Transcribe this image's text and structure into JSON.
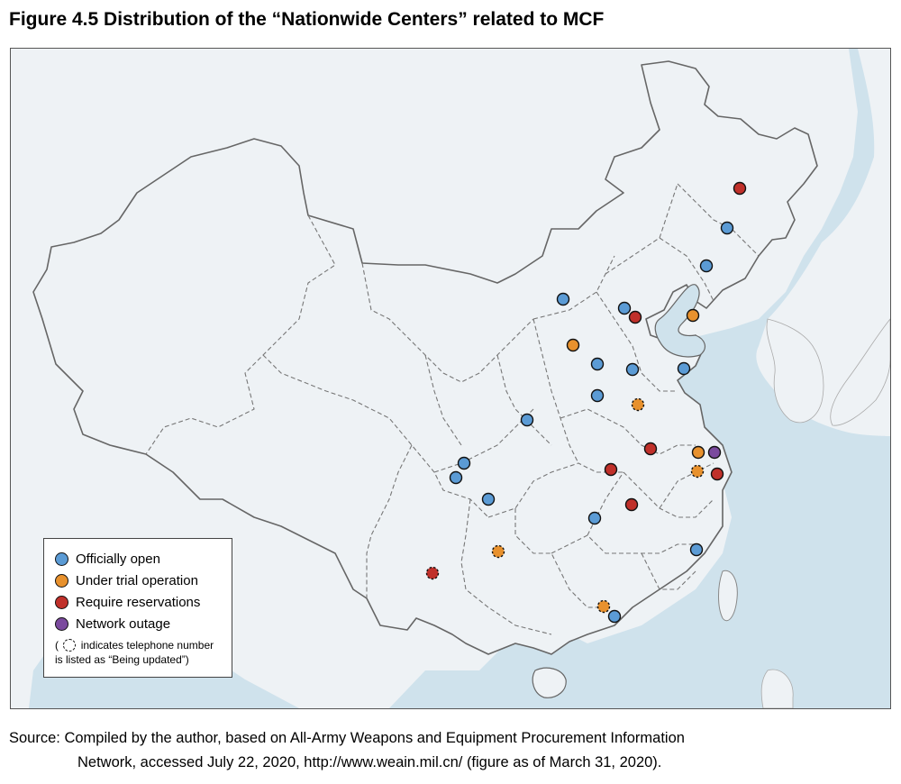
{
  "figure": {
    "title": "Figure 4.5  Distribution of the “Nationwide Centers” related to MCF"
  },
  "legend": {
    "items": [
      {
        "label": "Officially open",
        "color": "#5b9bd5"
      },
      {
        "label": "Under trial operation",
        "color": "#e8912d"
      },
      {
        "label": "Require reservations",
        "color": "#c0302a"
      },
      {
        "label": "Network outage",
        "color": "#7b4a9e"
      }
    ],
    "note_paren_open": "(",
    "note_line1": "indicates telephone number",
    "note_line2": "is listed as “Being updated”)"
  },
  "colors": {
    "sea": "#cfe2ec",
    "land": "#eef2f5",
    "neighbor_land": "#f2f5f7",
    "border": "#666666",
    "province_border": "#777777"
  },
  "markers": [
    {
      "status": "reservation",
      "updating": false
    },
    {
      "status": "open",
      "updating": false
    },
    {
      "status": "open",
      "updating": false
    },
    {
      "status": "open",
      "updating": false
    },
    {
      "status": "open",
      "updating": false
    },
    {
      "status": "reservation",
      "updating": false
    },
    {
      "status": "trial",
      "updating": false
    },
    {
      "status": "trial",
      "updating": false
    },
    {
      "status": "open",
      "updating": false
    },
    {
      "status": "open",
      "updating": false
    },
    {
      "status": "open",
      "updating": false
    },
    {
      "status": "open",
      "updating": false
    },
    {
      "status": "trial",
      "updating": true
    },
    {
      "status": "open",
      "updating": false
    },
    {
      "status": "reservation",
      "updating": false
    },
    {
      "status": "trial",
      "updating": false
    },
    {
      "status": "outage",
      "updating": false
    },
    {
      "status": "reservation",
      "updating": false
    },
    {
      "status": "trial",
      "updating": true
    },
    {
      "status": "reservation",
      "updating": false
    },
    {
      "status": "open",
      "updating": false
    },
    {
      "status": "open",
      "updating": false
    },
    {
      "status": "open",
      "updating": false
    },
    {
      "status": "reservation",
      "updating": false
    },
    {
      "status": "open",
      "updating": false
    },
    {
      "status": "open",
      "updating": false
    },
    {
      "status": "trial",
      "updating": true
    },
    {
      "status": "reservation",
      "updating": true
    },
    {
      "status": "trial",
      "updating": true
    },
    {
      "status": "open",
      "updating": false
    }
  ],
  "source": {
    "line1": "Source: Compiled by the author, based on All-Army Weapons and Equipment Procurement Information",
    "line2": "Network, accessed July 22, 2020, http://www.weain.mil.cn/ (figure as of March 31, 2020)."
  }
}
